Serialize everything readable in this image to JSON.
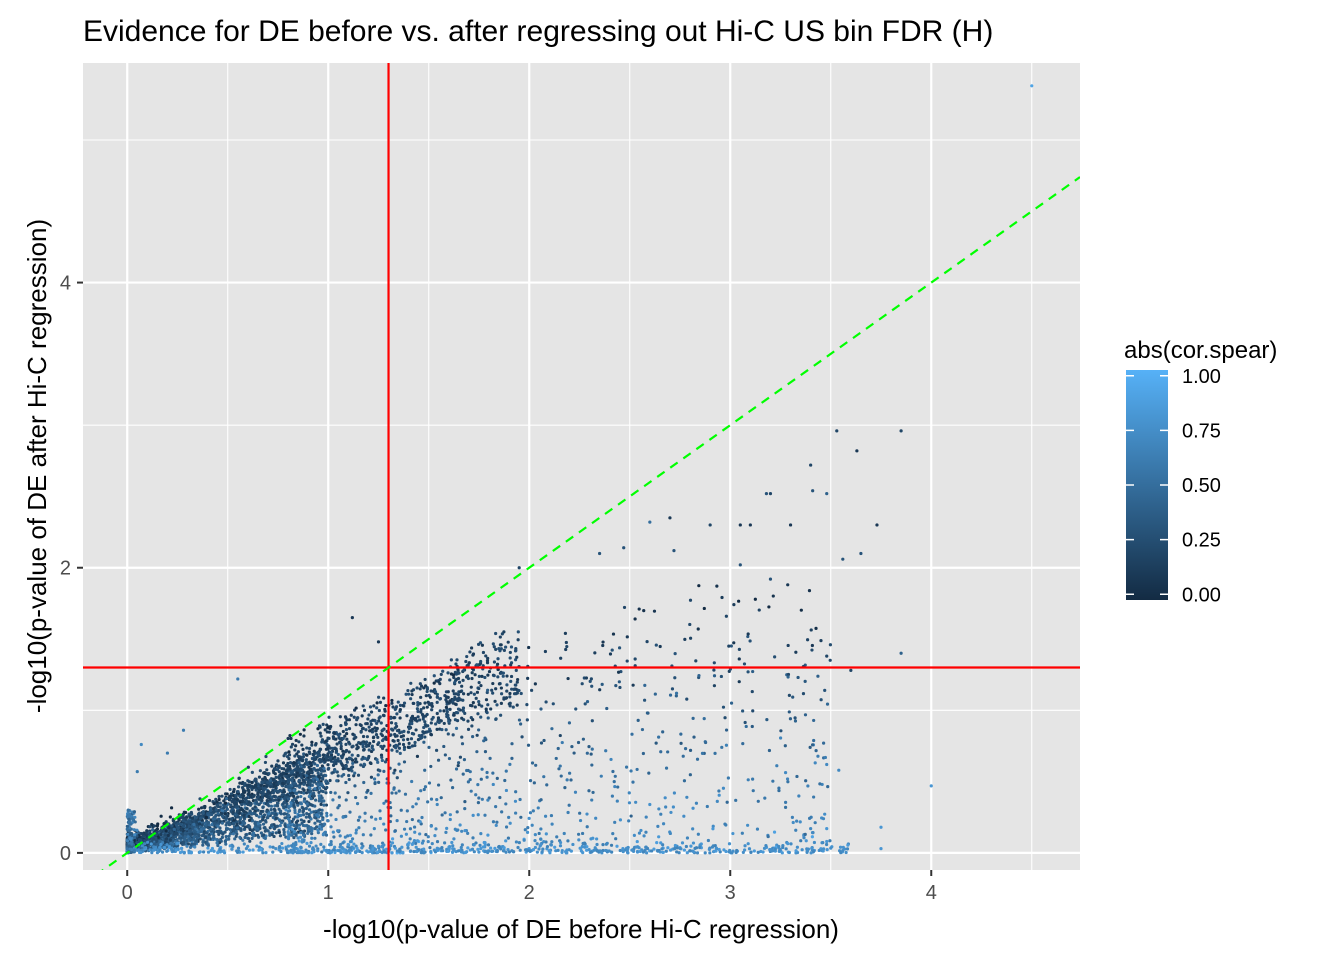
{
  "chart_data": {
    "type": "scatter",
    "title": "Evidence for DE before vs. after regressing out Hi-C US bin FDR (H)",
    "xlabel": "-log10(p-value of DE before Hi-C regression)",
    "ylabel": "-log10(p-value of DE after Hi-C regression)",
    "xlim": [
      -0.22,
      4.74
    ],
    "ylim": [
      -0.12,
      5.54
    ],
    "x_ticks": [
      0,
      1,
      2,
      3,
      4
    ],
    "x_tick_labels": [
      "0",
      "1",
      "2",
      "3",
      "4"
    ],
    "y_ticks": [
      0,
      2,
      4
    ],
    "y_tick_labels": [
      "0",
      "2",
      "4"
    ],
    "grid": true,
    "panel_background": "#e5e5e5",
    "grid_color": "#ffffff",
    "reference_lines": {
      "vertical_x": 1.3,
      "horizontal_y": 1.3,
      "line_color": "#ff0000",
      "diagonal": {
        "slope": 1,
        "intercept": 0,
        "color": "#00ff00",
        "style": "dashed"
      }
    },
    "color_legend": {
      "title": "abs(cor.spear)",
      "ticks": [
        0.0,
        0.25,
        0.5,
        0.75,
        1.0
      ],
      "tick_labels": [
        "0.00",
        "0.25",
        "0.50",
        "0.75",
        "1.00"
      ],
      "low_color": "#132b43",
      "high_color": "#56b1f7",
      "placement": "right"
    },
    "points": [
      [
        4.5,
        5.38,
        0.9
      ],
      [
        3.53,
        2.96,
        0.2
      ],
      [
        3.85,
        2.96,
        0.2
      ],
      [
        3.63,
        2.82,
        0.1
      ],
      [
        3.4,
        2.72,
        0.2
      ],
      [
        3.41,
        2.54,
        0.3
      ],
      [
        3.48,
        2.52,
        0.4
      ],
      [
        3.18,
        2.52,
        0.3
      ],
      [
        3.2,
        2.52,
        0.2
      ],
      [
        3.73,
        2.3,
        0.1
      ],
      [
        3.56,
        2.06,
        0.3
      ],
      [
        3.65,
        2.1,
        0.3
      ],
      [
        3.05,
        2.3,
        0.1
      ],
      [
        3.1,
        2.3,
        0.1
      ],
      [
        3.3,
        2.3,
        0.1
      ],
      [
        2.9,
        2.3,
        0.2
      ],
      [
        3.05,
        2.02,
        0.3
      ],
      [
        3.2,
        1.92,
        0.3
      ],
      [
        3.85,
        1.4,
        0.4
      ],
      [
        3.48,
        1.38,
        0.2
      ],
      [
        3.6,
        1.28,
        0.2
      ],
      [
        3.47,
        1.14,
        0.3
      ],
      [
        3.48,
        0.62,
        0.7
      ],
      [
        3.54,
        0.58,
        0.7
      ],
      [
        4.0,
        0.47,
        0.8
      ],
      [
        3.75,
        0.18,
        0.8
      ],
      [
        3.75,
        0.03,
        0.8
      ],
      [
        3.48,
        0.17,
        0.8
      ],
      [
        3.4,
        0.17,
        0.7
      ],
      [
        3.48,
        0.08,
        0.8
      ],
      [
        1.12,
        1.65,
        0.1
      ],
      [
        1.25,
        1.48,
        0.1
      ],
      [
        1.55,
        1.2,
        0.1
      ],
      [
        0.55,
        1.22,
        0.6
      ],
      [
        0.28,
        0.86,
        0.6
      ],
      [
        0.07,
        0.76,
        0.7
      ],
      [
        0.05,
        0.57,
        0.6
      ],
      [
        0.2,
        0.7,
        0.6
      ],
      [
        1.95,
        2.0,
        0.2
      ],
      [
        2.35,
        2.1,
        0.3
      ],
      [
        2.47,
        2.14,
        0.3
      ],
      [
        2.7,
        2.35,
        0.1
      ],
      [
        2.6,
        2.32,
        0.5
      ],
      [
        2.72,
        2.12,
        0.3
      ]
    ]
  }
}
